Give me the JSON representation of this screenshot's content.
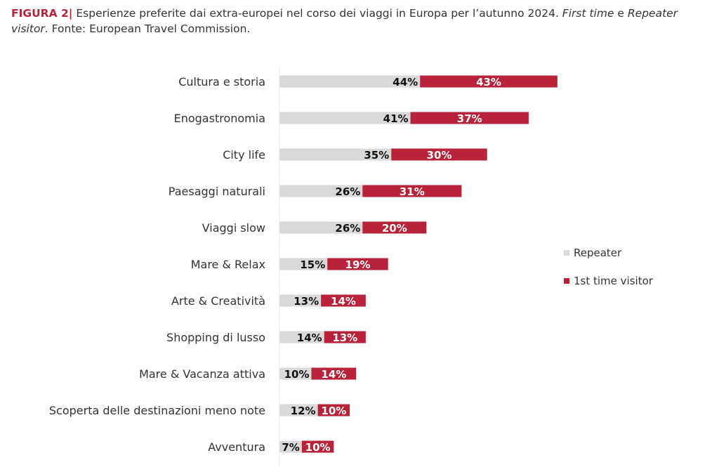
{
  "title": {
    "figure_label": "FIGURA 2|",
    "text": " Esperienze preferite dai extra-europei nel corso dei viaggi in Europa per l’autunno 2024. ",
    "italic1": "First time",
    "mid": " e ",
    "italic2": "Repeater visitor",
    "source": ". Fonte: European Travel Commission."
  },
  "chart_data": {
    "type": "bar",
    "orientation": "horizontal",
    "stacked": true,
    "title": "Esperienze preferite dai extra-europei nel corso dei viaggi in Europa per l’autunno 2024. First time e Repeater visitor. Fonte: European Travel Commission.",
    "categories": [
      "Cultura e storia",
      "Enogastronomia",
      "City life",
      "Paesaggi naturali",
      "Viaggi slow",
      "Mare & Relax",
      "Arte & Creatività",
      "Shopping di lusso",
      "Mare & Vacanza attiva",
      "Scoperta delle destinazioni meno note",
      "Avventura"
    ],
    "series": [
      {
        "name": "Repeater",
        "color": "#d9d9d9",
        "values": [
          44,
          41,
          35,
          26,
          26,
          15,
          13,
          14,
          10,
          12,
          7
        ]
      },
      {
        "name": "1st time visitor",
        "color": "#b8233a",
        "values": [
          43,
          37,
          30,
          31,
          20,
          19,
          14,
          13,
          14,
          10,
          10
        ]
      }
    ],
    "legend_position": "right",
    "grid": false
  }
}
